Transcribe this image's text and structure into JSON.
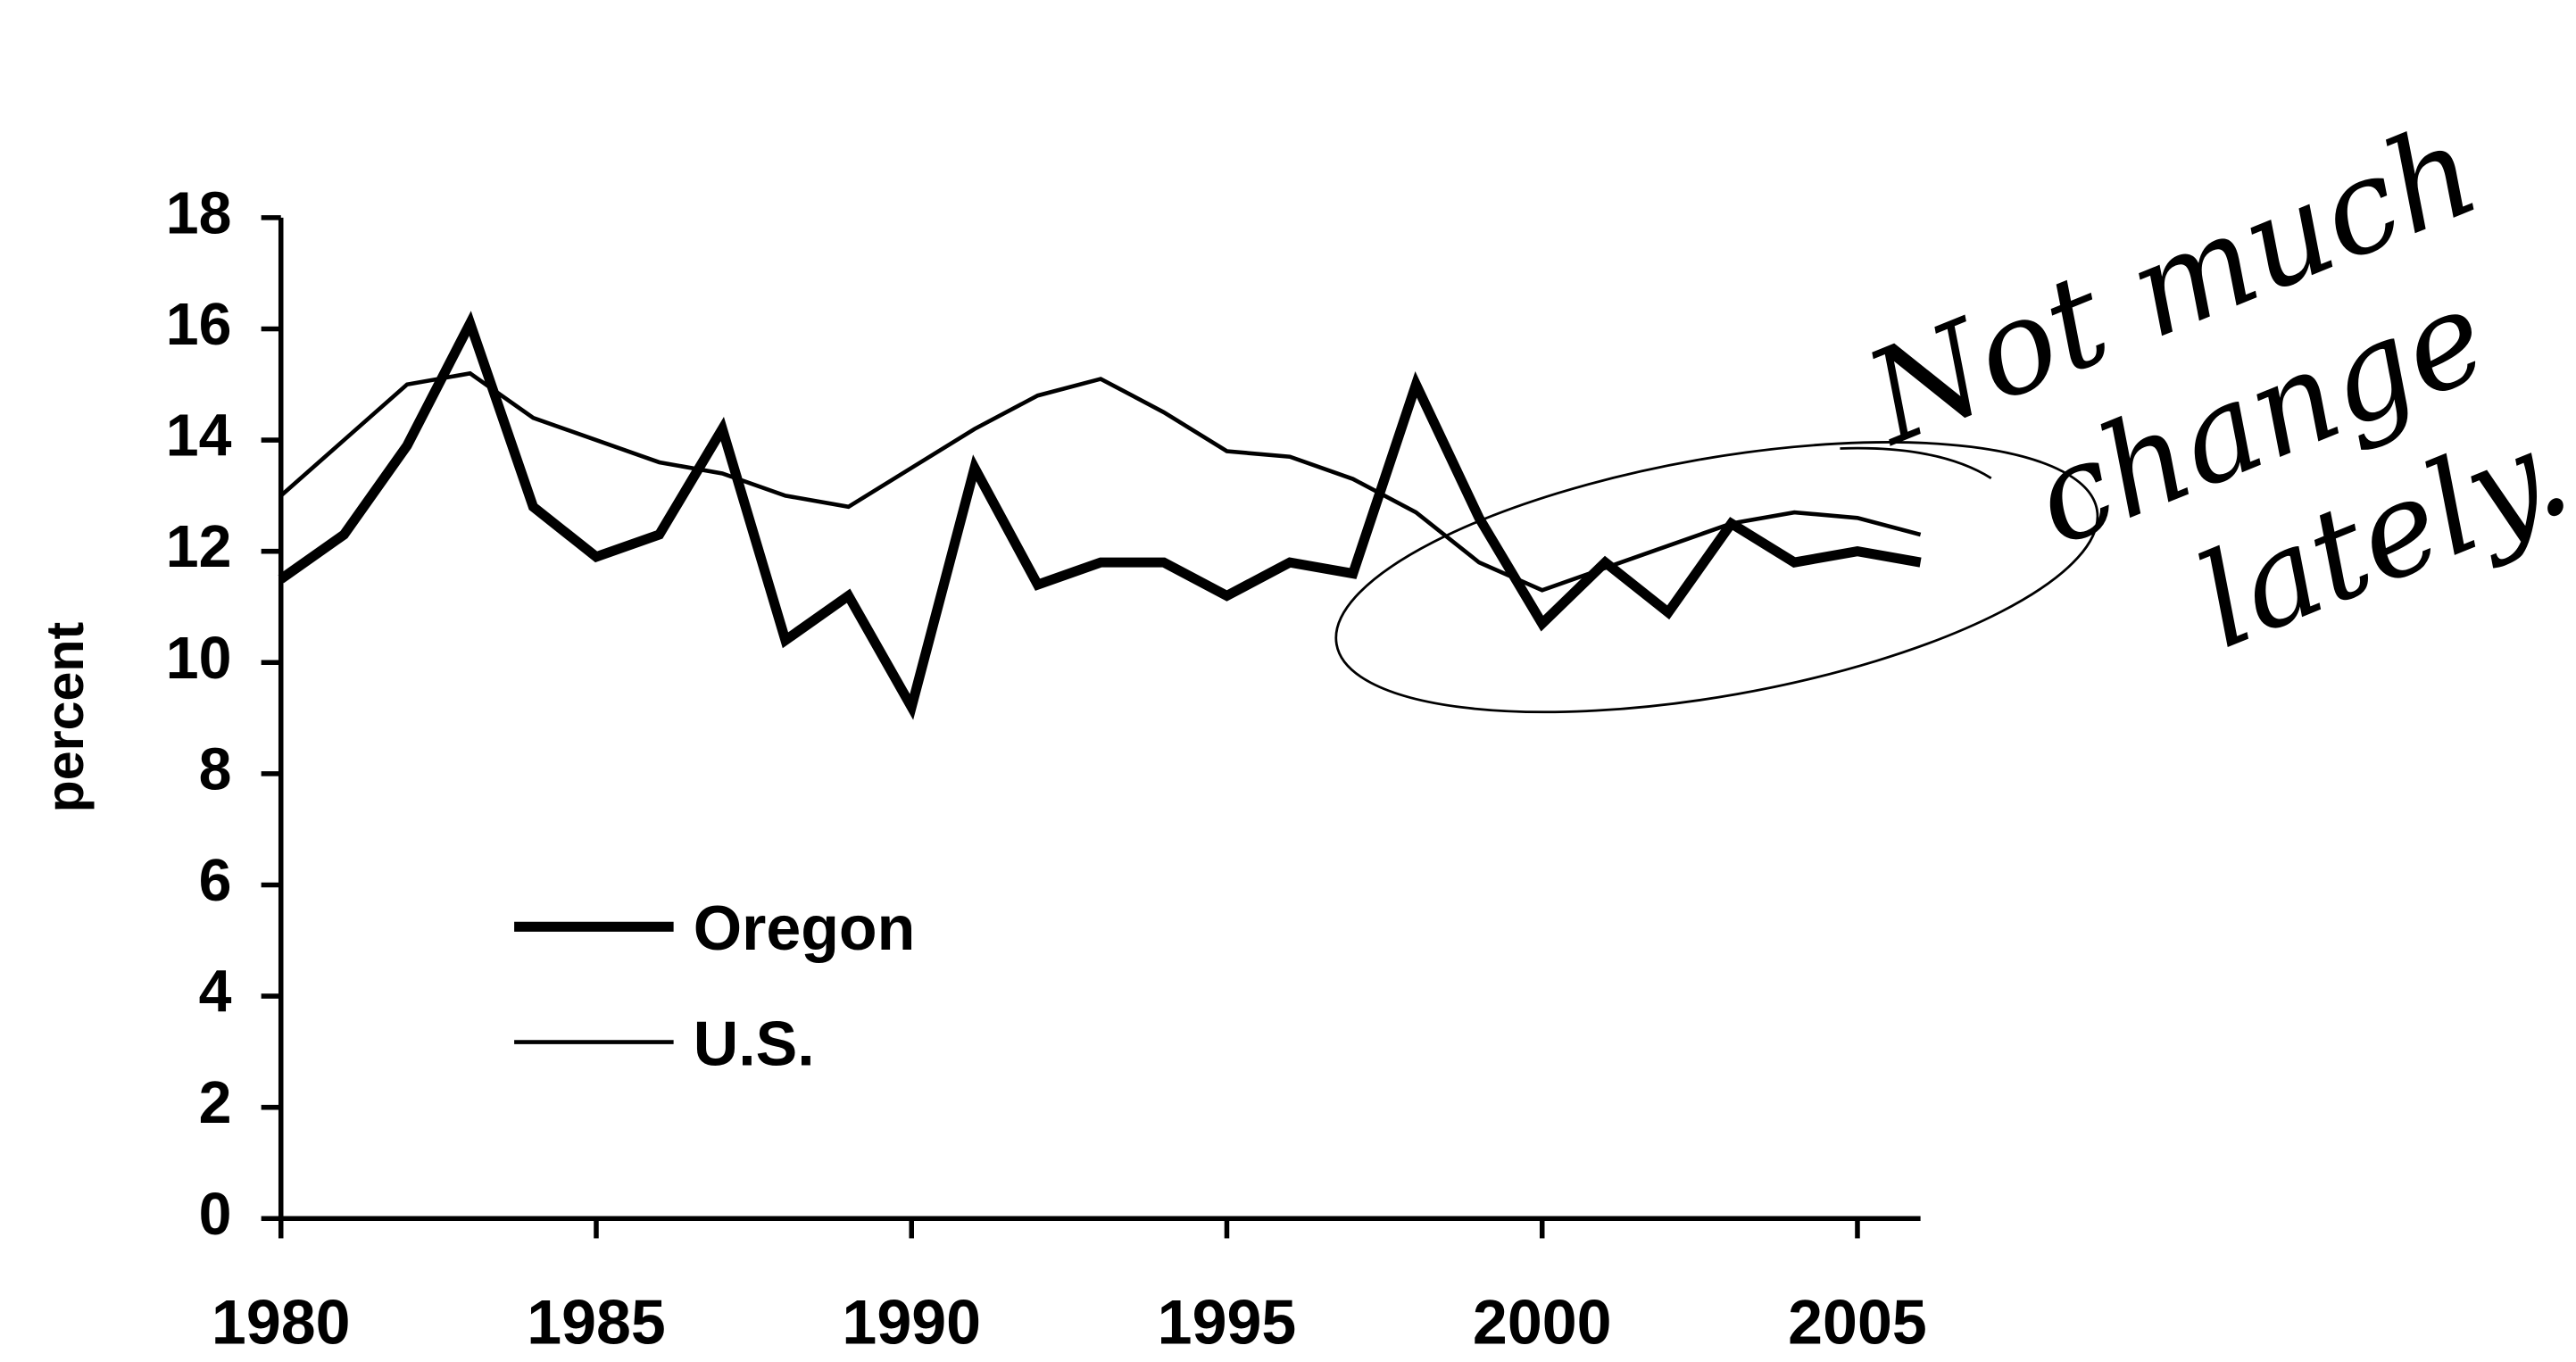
{
  "chart_data": {
    "type": "line",
    "y_label": "percent",
    "annotation": [
      "Not much",
      "change",
      "lately."
    ],
    "x": [
      1980,
      1981,
      1982,
      1983,
      1984,
      1985,
      1986,
      1987,
      1988,
      1989,
      1990,
      1991,
      1992,
      1993,
      1994,
      1995,
      1996,
      1997,
      1998,
      1999,
      2000,
      2001,
      2002,
      2003,
      2004,
      2005,
      2006
    ],
    "series": [
      {
        "name": "Oregon",
        "color": "#000000",
        "width": "thick",
        "values": [
          11.5,
          12.3,
          13.9,
          16.1,
          12.8,
          11.9,
          12.3,
          14.2,
          10.4,
          11.2,
          9.2,
          13.5,
          11.4,
          11.8,
          11.8,
          11.2,
          11.8,
          11.6,
          15.0,
          12.6,
          10.7,
          11.8,
          10.9,
          12.5,
          11.8,
          12.0,
          11.8
        ]
      },
      {
        "name": "U.S.",
        "color": "#000000",
        "width": "thin",
        "values": [
          13.0,
          14.0,
          15.0,
          15.2,
          14.4,
          14.0,
          13.6,
          13.4,
          13.0,
          12.8,
          13.5,
          14.2,
          14.8,
          15.1,
          14.5,
          13.8,
          13.7,
          13.3,
          12.7,
          11.8,
          11.3,
          11.7,
          12.1,
          12.5,
          12.7,
          12.6,
          12.3
        ]
      }
    ],
    "xlim": [
      1980,
      2006
    ],
    "xticks": [
      1980,
      1985,
      1990,
      1995,
      2000,
      2005
    ],
    "ylim": [
      0,
      18
    ],
    "yticks": [
      0,
      2,
      4,
      6,
      8,
      10,
      12,
      14,
      16,
      18
    ],
    "grid": false,
    "legend": "lower left"
  }
}
